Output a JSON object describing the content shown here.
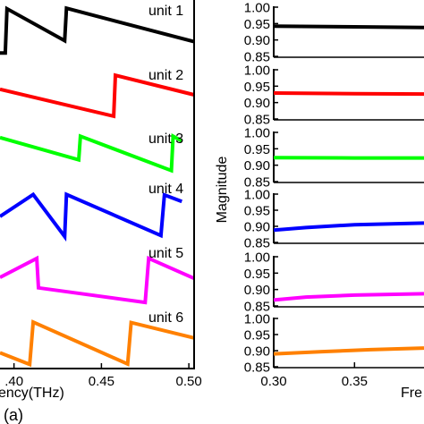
{
  "figure_label": "(a)",
  "chart_data": [
    {
      "type": "line",
      "panel": "left",
      "xlabel": "Frequency(THz)",
      "visible_xlabel_fragment": "ency(THz)",
      "xlim": [
        0.392,
        0.503
      ],
      "x_ticks": [
        0.4,
        0.45,
        0.5
      ],
      "x_tick_labels": [
        ".40",
        "0.45",
        "0.50"
      ],
      "grid": false,
      "units": [
        {
          "name": "unit 1",
          "color": "#000000",
          "points": [
            [
              0.392,
              0.05
            ],
            [
              0.395,
              0.05
            ],
            [
              0.396,
              0.95
            ],
            [
              0.429,
              0.3
            ],
            [
              0.43,
              0.96
            ],
            [
              0.503,
              0.28
            ]
          ]
        },
        {
          "name": "unit 2",
          "color": "#ff0000",
          "points": [
            [
              0.392,
              0.62
            ],
            [
              0.457,
              0.04
            ],
            [
              0.458,
              0.92
            ],
            [
              0.503,
              0.5
            ]
          ]
        },
        {
          "name": "unit 3",
          "color": "#00ff00",
          "points": [
            [
              0.392,
              0.88
            ],
            [
              0.437,
              0.36
            ],
            [
              0.438,
              0.91
            ],
            [
              0.49,
              0.11
            ],
            [
              0.491,
              0.91
            ],
            [
              0.496,
              0.8
            ]
          ]
        },
        {
          "name": "unit 4",
          "color": "#0000ff",
          "points": [
            [
              0.392,
              0.5
            ],
            [
              0.411,
              0.94
            ],
            [
              0.429,
              0.1
            ],
            [
              0.43,
              0.94
            ],
            [
              0.484,
              0.12
            ],
            [
              0.486,
              0.93
            ],
            [
              0.496,
              0.8
            ]
          ]
        },
        {
          "name": "unit 5",
          "color": "#ff00ff",
          "points": [
            [
              0.392,
              0.57
            ],
            [
              0.413,
              0.95
            ],
            [
              0.414,
              0.36
            ],
            [
              0.475,
              0.07
            ],
            [
              0.477,
              0.95
            ],
            [
              0.503,
              0.55
            ]
          ]
        },
        {
          "name": "unit 6",
          "color": "#ff8000",
          "points": [
            [
              0.392,
              0.3
            ],
            [
              0.409,
              0.05
            ],
            [
              0.411,
              0.96
            ],
            [
              0.465,
              0.06
            ],
            [
              0.467,
              0.95
            ],
            [
              0.503,
              0.62
            ]
          ]
        }
      ]
    },
    {
      "type": "line",
      "panel": "right",
      "xlabel": "Frequency(THz)",
      "visible_xlabel_fragment": "Fre",
      "ylabel": "Magnitude",
      "xlim": [
        0.3,
        0.393
      ],
      "ylim": [
        0.85,
        1.0
      ],
      "x_ticks": [
        0.3,
        0.35
      ],
      "x_tick_labels": [
        "0.30",
        "0.35"
      ],
      "y_tick_labels": [
        "1.00",
        "0.95",
        "0.90",
        "0.85"
      ],
      "grid": false,
      "units": [
        {
          "name": "unit 1",
          "color": "#000000",
          "points": [
            [
              0.3,
              0.942
            ],
            [
              0.35,
              0.94
            ],
            [
              0.393,
              0.938
            ]
          ]
        },
        {
          "name": "unit 2",
          "color": "#ff0000",
          "points": [
            [
              0.3,
              0.929
            ],
            [
              0.35,
              0.927
            ],
            [
              0.393,
              0.926
            ]
          ]
        },
        {
          "name": "unit 3",
          "color": "#00ff00",
          "points": [
            [
              0.3,
              0.923
            ],
            [
              0.35,
              0.922
            ],
            [
              0.393,
              0.922
            ]
          ]
        },
        {
          "name": "unit 4",
          "color": "#0000ff",
          "points": [
            [
              0.3,
              0.888
            ],
            [
              0.32,
              0.896
            ],
            [
              0.35,
              0.905
            ],
            [
              0.393,
              0.91
            ]
          ]
        },
        {
          "name": "unit 5",
          "color": "#ff00ff",
          "points": [
            [
              0.3,
              0.868
            ],
            [
              0.32,
              0.877
            ],
            [
              0.35,
              0.883
            ],
            [
              0.393,
              0.887
            ]
          ]
        },
        {
          "name": "unit 6",
          "color": "#ff8000",
          "points": [
            [
              0.3,
              0.89
            ],
            [
              0.33,
              0.897
            ],
            [
              0.36,
              0.903
            ],
            [
              0.393,
              0.908
            ]
          ]
        }
      ]
    }
  ]
}
